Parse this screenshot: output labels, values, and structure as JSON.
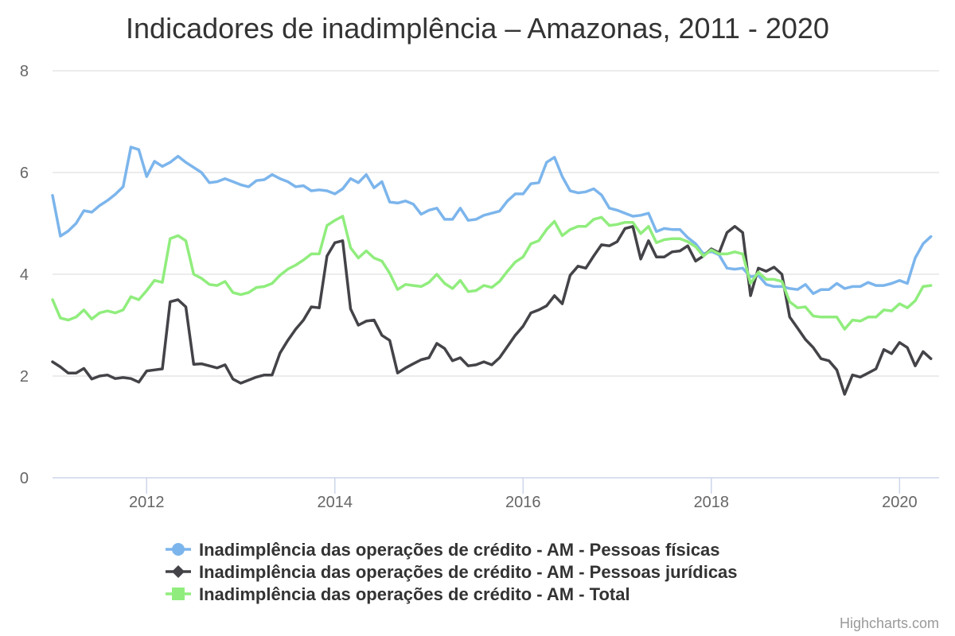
{
  "chart_data": {
    "type": "line",
    "title": "Indicadores de inadimplência – Amazonas, 2011 - 2020",
    "xlabel": "",
    "ylabel": "",
    "xlim": [
      2011.0,
      2020.42
    ],
    "ylim": [
      0,
      8
    ],
    "x_ticks": [
      2012,
      2014,
      2016,
      2018,
      2020
    ],
    "x_tick_labels": [
      "2012",
      "2014",
      "2016",
      "2018",
      "2020"
    ],
    "y_ticks": [
      0,
      2,
      4,
      6,
      8
    ],
    "y_tick_labels": [
      "0",
      "2",
      "4",
      "6",
      "8"
    ],
    "grid": true,
    "legend_position": "bottom-center",
    "x_start": 2011.0,
    "x_step": 0.08333,
    "series": [
      {
        "name": "Inadimplência das operações de crédito - AM - Pessoas físicas",
        "color": "#7cb5ec",
        "marker": "circle",
        "values": [
          5.55,
          4.75,
          4.85,
          5.0,
          5.25,
          5.22,
          5.35,
          5.45,
          5.57,
          5.72,
          6.5,
          6.45,
          5.92,
          6.22,
          6.12,
          6.2,
          6.32,
          6.2,
          6.1,
          6.0,
          5.8,
          5.82,
          5.88,
          5.82,
          5.76,
          5.72,
          5.84,
          5.86,
          5.96,
          5.88,
          5.82,
          5.72,
          5.74,
          5.64,
          5.66,
          5.64,
          5.58,
          5.68,
          5.88,
          5.8,
          5.96,
          5.7,
          5.82,
          5.42,
          5.4,
          5.44,
          5.38,
          5.18,
          5.26,
          5.3,
          5.08,
          5.08,
          5.3,
          5.06,
          5.08,
          5.16,
          5.2,
          5.24,
          5.44,
          5.58,
          5.58,
          5.78,
          5.8,
          6.2,
          6.3,
          5.92,
          5.64,
          5.6,
          5.62,
          5.68,
          5.56,
          5.3,
          5.26,
          5.2,
          5.14,
          5.16,
          5.2,
          4.84,
          4.9,
          4.88,
          4.88,
          4.72,
          4.6,
          4.4,
          4.45,
          4.38,
          4.12,
          4.1,
          4.12,
          3.95,
          3.98,
          3.8,
          3.76,
          3.76,
          3.72,
          3.7,
          3.8,
          3.62,
          3.7,
          3.7,
          3.82,
          3.72,
          3.76,
          3.76,
          3.84,
          3.78,
          3.78,
          3.82,
          3.88,
          3.82,
          4.32,
          4.6,
          4.74
        ]
      },
      {
        "name": "Inadimplência das operações de crédito - AM - Pessoas jurídicas",
        "color": "#434348",
        "marker": "diamond",
        "values": [
          2.28,
          2.18,
          2.06,
          2.06,
          2.15,
          1.94,
          2.0,
          2.02,
          1.95,
          1.97,
          1.95,
          1.88,
          2.1,
          2.12,
          2.14,
          3.46,
          3.5,
          3.36,
          2.23,
          2.24,
          2.2,
          2.16,
          2.22,
          1.94,
          1.86,
          1.92,
          1.98,
          2.02,
          2.02,
          2.45,
          2.7,
          2.92,
          3.1,
          3.36,
          3.34,
          4.36,
          4.62,
          4.66,
          3.32,
          3.0,
          3.08,
          3.1,
          2.8,
          2.7,
          2.06,
          2.16,
          2.24,
          2.32,
          2.36,
          2.64,
          2.54,
          2.3,
          2.36,
          2.2,
          2.22,
          2.28,
          2.22,
          2.36,
          2.58,
          2.8,
          2.98,
          3.24,
          3.3,
          3.38,
          3.58,
          3.42,
          3.98,
          4.16,
          4.12,
          4.36,
          4.58,
          4.56,
          4.64,
          4.9,
          4.94,
          4.3,
          4.66,
          4.34,
          4.34,
          4.44,
          4.46,
          4.56,
          4.26,
          4.36,
          4.5,
          4.42,
          4.82,
          4.94,
          4.82,
          3.58,
          4.12,
          4.06,
          4.14,
          4.0,
          3.16,
          2.94,
          2.72,
          2.56,
          2.34,
          2.3,
          2.12,
          1.64,
          2.02,
          1.98,
          2.06,
          2.14,
          2.52,
          2.44,
          2.66,
          2.56,
          2.2,
          2.48,
          2.34
        ]
      },
      {
        "name": "Inadimplência das operações de crédito - AM - Total",
        "color": "#90ed7d",
        "marker": "square",
        "values": [
          3.5,
          3.14,
          3.1,
          3.16,
          3.3,
          3.12,
          3.24,
          3.28,
          3.24,
          3.3,
          3.56,
          3.5,
          3.68,
          3.88,
          3.84,
          4.7,
          4.76,
          4.66,
          4.0,
          3.92,
          3.8,
          3.78,
          3.86,
          3.64,
          3.6,
          3.64,
          3.74,
          3.76,
          3.82,
          3.98,
          4.1,
          4.18,
          4.28,
          4.4,
          4.4,
          4.96,
          5.06,
          5.14,
          4.52,
          4.32,
          4.46,
          4.32,
          4.26,
          4.02,
          3.7,
          3.8,
          3.78,
          3.76,
          3.84,
          4.0,
          3.82,
          3.72,
          3.88,
          3.66,
          3.68,
          3.78,
          3.74,
          3.86,
          4.06,
          4.24,
          4.34,
          4.6,
          4.66,
          4.88,
          5.04,
          4.76,
          4.88,
          4.94,
          4.94,
          5.08,
          5.12,
          4.96,
          4.98,
          5.02,
          5.02,
          4.8,
          4.94,
          4.62,
          4.68,
          4.7,
          4.7,
          4.64,
          4.54,
          4.36,
          4.48,
          4.4,
          4.4,
          4.44,
          4.4,
          3.82,
          4.04,
          3.9,
          3.9,
          3.86,
          3.46,
          3.34,
          3.36,
          3.18,
          3.16,
          3.16,
          3.16,
          2.92,
          3.1,
          3.08,
          3.16,
          3.16,
          3.3,
          3.28,
          3.42,
          3.34,
          3.48,
          3.76,
          3.78
        ]
      }
    ]
  },
  "credits": "Highcharts.com"
}
